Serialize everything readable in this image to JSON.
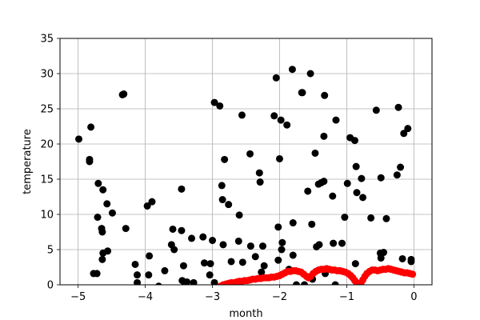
{
  "chart_data": {
    "type": "scatter",
    "xlabel": "month",
    "ylabel": "temperature",
    "xlim": [
      -5.27,
      0.27
    ],
    "ylim": [
      0,
      35
    ],
    "grid": true,
    "xticks": [
      {
        "value": -5,
        "label": "−5"
      },
      {
        "value": -4,
        "label": "−4"
      },
      {
        "value": -3,
        "label": "−3"
      },
      {
        "value": -2,
        "label": "−2"
      },
      {
        "value": -1,
        "label": "−1"
      },
      {
        "value": 0,
        "label": "0"
      }
    ],
    "yticks": [
      {
        "value": 0,
        "label": "0"
      },
      {
        "value": 5,
        "label": "5"
      },
      {
        "value": 10,
        "label": "10"
      },
      {
        "value": 15,
        "label": "15"
      },
      {
        "value": 20,
        "label": "20"
      },
      {
        "value": 25,
        "label": "25"
      },
      {
        "value": 30,
        "label": "30"
      },
      {
        "value": 35,
        "label": "35"
      }
    ],
    "series": [
      {
        "color": "#000000",
        "points": [
          [
            -4.99,
            20.7
          ],
          [
            -4.83,
            17.8
          ],
          [
            -4.83,
            17.5
          ],
          [
            -4.81,
            22.4
          ],
          [
            -4.77,
            1.6
          ],
          [
            -4.72,
            1.6
          ],
          [
            -4.71,
            9.6
          ],
          [
            -4.7,
            14.4
          ],
          [
            -4.65,
            8.0
          ],
          [
            -4.64,
            7.5
          ],
          [
            -4.64,
            3.6
          ],
          [
            -4.63,
            4.5
          ],
          [
            -4.63,
            13.5
          ],
          [
            -4.57,
            11.5
          ],
          [
            -4.56,
            4.8
          ],
          [
            -4.49,
            10.2
          ],
          [
            -4.34,
            27.0
          ],
          [
            -4.32,
            27.1
          ],
          [
            -4.29,
            8.0
          ],
          [
            -4.15,
            2.9
          ],
          [
            -4.12,
            0.3
          ],
          [
            -4.12,
            1.4
          ],
          [
            -3.97,
            11.2
          ],
          [
            -3.95,
            1.4
          ],
          [
            -3.94,
            4.1
          ],
          [
            -3.9,
            11.8
          ],
          [
            -3.8,
            -0.2
          ],
          [
            -3.71,
            2.0
          ],
          [
            -3.61,
            5.7
          ],
          [
            -3.59,
            7.9
          ],
          [
            -3.57,
            5.0
          ],
          [
            -3.46,
            13.6
          ],
          [
            -3.46,
            7.7
          ],
          [
            -3.45,
            0.6
          ],
          [
            -3.43,
            2.7
          ],
          [
            -3.41,
            0.2
          ],
          [
            -3.38,
            0.4
          ],
          [
            -3.31,
            6.6
          ],
          [
            -3.28,
            0.3
          ],
          [
            -3.14,
            6.8
          ],
          [
            -3.12,
            3.1
          ],
          [
            -3.04,
            1.4
          ],
          [
            -3.03,
            3.0
          ],
          [
            -3.0,
            6.3
          ],
          [
            -2.97,
            25.9
          ],
          [
            -2.97,
            0.3
          ],
          [
            -2.89,
            25.4
          ],
          [
            -2.86,
            14.1
          ],
          [
            -2.85,
            12.1
          ],
          [
            -2.84,
            5.7
          ],
          [
            -2.82,
            17.8
          ],
          [
            -2.76,
            11.4
          ],
          [
            -2.72,
            3.3
          ],
          [
            -2.61,
            6.2
          ],
          [
            -2.6,
            9.9
          ],
          [
            -2.56,
            24.1
          ],
          [
            -2.55,
            3.2
          ],
          [
            -2.44,
            18.6
          ],
          [
            -2.43,
            5.5
          ],
          [
            -2.36,
            4.0
          ],
          [
            -2.3,
            15.9
          ],
          [
            -2.29,
            14.6
          ],
          [
            -2.27,
            1.8
          ],
          [
            -2.25,
            5.5
          ],
          [
            -2.23,
            2.7
          ],
          [
            -2.08,
            24.0
          ],
          [
            -2.05,
            29.4
          ],
          [
            -2.02,
            8.2
          ],
          [
            -2.02,
            3.5
          ],
          [
            -2.0,
            17.9
          ],
          [
            -1.98,
            23.4
          ],
          [
            -1.97,
            5.0
          ],
          [
            -1.96,
            6.0
          ],
          [
            -1.89,
            22.7
          ],
          [
            -1.86,
            2.2
          ],
          [
            -1.81,
            30.6
          ],
          [
            -1.8,
            4.2
          ],
          [
            -1.8,
            8.8
          ],
          [
            -1.75,
            0.0
          ],
          [
            -1.67,
            27.3
          ],
          [
            -1.66,
            27.3
          ],
          [
            -1.63,
            0.0
          ],
          [
            -1.58,
            13.3
          ],
          [
            -1.54,
            30.0
          ],
          [
            -1.52,
            8.6
          ],
          [
            -1.51,
            0.8
          ],
          [
            -1.47,
            18.7
          ],
          [
            -1.45,
            5.4
          ],
          [
            -1.42,
            14.3
          ],
          [
            -1.41,
            5.7
          ],
          [
            -1.38,
            14.5
          ],
          [
            -1.34,
            14.7
          ],
          [
            -1.34,
            21.1
          ],
          [
            -1.33,
            26.9
          ],
          [
            -1.32,
            1.6
          ],
          [
            -1.21,
            12.6
          ],
          [
            -1.2,
            5.9
          ],
          [
            -1.17,
            0.0
          ],
          [
            -1.16,
            23.4
          ],
          [
            -1.07,
            5.9
          ],
          [
            -1.03,
            9.6
          ],
          [
            -0.99,
            14.4
          ],
          [
            -0.95,
            20.9
          ],
          [
            -0.88,
            20.5
          ],
          [
            -0.87,
            3.0
          ],
          [
            -0.86,
            16.8
          ],
          [
            -0.85,
            13.1
          ],
          [
            -0.78,
            15.1
          ],
          [
            -0.76,
            12.4
          ],
          [
            -0.64,
            9.5
          ],
          [
            -0.56,
            24.8
          ],
          [
            -0.5,
            4.5
          ],
          [
            -0.49,
            15.2
          ],
          [
            -0.49,
            3.8
          ],
          [
            -0.45,
            4.6
          ],
          [
            -0.41,
            9.4
          ],
          [
            -0.25,
            15.6
          ],
          [
            -0.23,
            25.2
          ],
          [
            -0.2,
            16.7
          ],
          [
            -0.17,
            3.7
          ],
          [
            -0.15,
            21.5
          ],
          [
            -0.09,
            22.2
          ],
          [
            -0.04,
            3.3
          ],
          [
            -0.04,
            3.6
          ]
        ]
      },
      {
        "color": "#ff0000",
        "points": [
          [
            -2.88,
            -0.2
          ],
          [
            -2.84,
            0.0
          ],
          [
            -2.8,
            0.1
          ],
          [
            -2.76,
            0.2
          ],
          [
            -2.72,
            0.3
          ],
          [
            -2.68,
            0.3
          ],
          [
            -2.64,
            0.4
          ],
          [
            -2.6,
            0.5
          ],
          [
            -2.56,
            0.5
          ],
          [
            -2.52,
            0.6
          ],
          [
            -2.48,
            0.6
          ],
          [
            -2.44,
            0.7
          ],
          [
            -2.4,
            0.8
          ],
          [
            -2.36,
            0.8
          ],
          [
            -2.32,
            0.9
          ],
          [
            -2.28,
            0.9
          ],
          [
            -2.24,
            1.0
          ],
          [
            -2.2,
            1.0
          ],
          [
            -2.16,
            1.0
          ],
          [
            -2.12,
            1.1
          ],
          [
            -2.08,
            1.1
          ],
          [
            -2.04,
            1.2
          ],
          [
            -2.0,
            1.3
          ],
          [
            -1.96,
            1.5
          ],
          [
            -1.92,
            1.7
          ],
          [
            -1.88,
            1.9
          ],
          [
            -1.84,
            1.9
          ],
          [
            -1.8,
            2.0
          ],
          [
            -1.76,
            2.0
          ],
          [
            -1.72,
            1.9
          ],
          [
            -1.68,
            1.8
          ],
          [
            -1.64,
            1.5
          ],
          [
            -1.6,
            1.2
          ],
          [
            -1.57,
            1.0
          ],
          [
            -1.54,
            1.2
          ],
          [
            -1.5,
            1.6
          ],
          [
            -1.46,
            1.9
          ],
          [
            -1.42,
            2.1
          ],
          [
            -1.38,
            2.2
          ],
          [
            -1.34,
            2.2
          ],
          [
            -1.3,
            2.3
          ],
          [
            -1.26,
            2.2
          ],
          [
            -1.22,
            2.1
          ],
          [
            -1.18,
            2.1
          ],
          [
            -1.14,
            2.0
          ],
          [
            -1.1,
            2.0
          ],
          [
            -1.06,
            1.9
          ],
          [
            -1.02,
            1.8
          ],
          [
            -0.98,
            1.6
          ],
          [
            -0.94,
            1.3
          ],
          [
            -0.91,
            1.0
          ],
          [
            -0.88,
            0.6
          ],
          [
            -0.85,
            0.3
          ],
          [
            -0.82,
            0.1
          ],
          [
            -0.79,
            0.2
          ],
          [
            -0.76,
            0.7
          ],
          [
            -0.73,
            1.2
          ],
          [
            -0.7,
            1.6
          ],
          [
            -0.66,
            1.9
          ],
          [
            -0.62,
            2.1
          ],
          [
            -0.58,
            2.1
          ],
          [
            -0.54,
            2.0
          ],
          [
            -0.5,
            2.1
          ],
          [
            -0.46,
            2.2
          ],
          [
            -0.42,
            2.2
          ],
          [
            -0.38,
            2.3
          ],
          [
            -0.34,
            2.2
          ],
          [
            -0.3,
            2.1
          ],
          [
            -0.26,
            2.0
          ],
          [
            -0.22,
            1.9
          ],
          [
            -0.18,
            1.8
          ],
          [
            -0.14,
            1.7
          ],
          [
            -0.1,
            1.7
          ],
          [
            -0.06,
            1.6
          ],
          [
            -0.02,
            1.5
          ]
        ]
      }
    ]
  }
}
